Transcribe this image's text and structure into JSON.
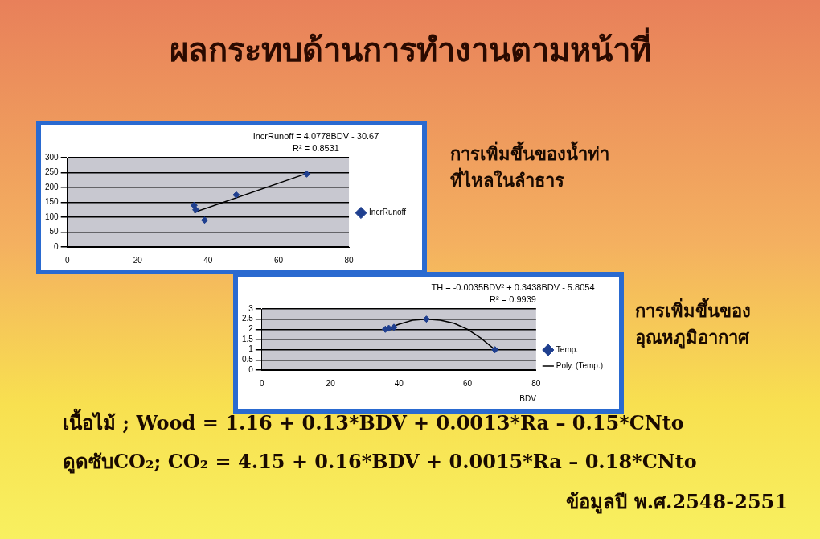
{
  "chart_data": [
    {
      "type": "other",
      "title": "ผลกระทบด้านการทำงานตามหน้าที่",
      "annotations": [
        "เนื้อไม้ ; Wood = 1.16 + 0.13*BDV + 0.0013*Ra – 0.15*CNto",
        "ดูดซับCO₂; CO₂ = 4.15 + 0.16*BDV + 0.0015*Ra – 0.18*CNto",
        "ข้อมูลปี พ.ศ.2548-2551",
        "การเพิ่มขึ้นของน้ำท่า\nที่ไหลในลำธาร",
        "การเพิ่มขึ้นของ\nอุณหภูมิอากาศ"
      ]
    },
    {
      "type": "scatter",
      "annotations": [
        "IncrRunoff = 4.0778BDV - 30.67",
        "R² = 0.8531"
      ],
      "xlim": [
        0,
        80
      ],
      "xticks": [
        0,
        20,
        40,
        60,
        80
      ],
      "ylim": [
        0,
        300
      ],
      "yticks": [
        0,
        50,
        100,
        150,
        200,
        250,
        300
      ],
      "grid": "y",
      "legend": "right",
      "series": [
        {
          "name": "IncrRunoff",
          "marker": "diamond",
          "color": "#1f3f8f",
          "x": [
            36,
            36.5,
            39,
            48,
            68
          ],
          "values": [
            140,
            125,
            90,
            175,
            245
          ]
        },
        {
          "type": "line",
          "marker": "none",
          "color": "#000000",
          "x": [
            36,
            68
          ],
          "values": [
            116,
            247
          ]
        }
      ]
    },
    {
      "type": "scatter",
      "annotations": [
        "TH = -0.0035BDV² + 0.3438BDV - 5.8054",
        "R² = 0.9939"
      ],
      "xlabel": "BDV",
      "xlim": [
        0,
        80
      ],
      "xticks": [
        0,
        20,
        40,
        60,
        80
      ],
      "ylim": [
        0,
        3
      ],
      "yticks": [
        0,
        0.5,
        1,
        1.5,
        2,
        2.5,
        3
      ],
      "grid": "y",
      "legend": "right",
      "series": [
        {
          "name": "Temp.",
          "marker": "diamond",
          "color": "#1f3f8f",
          "x": [
            36,
            37,
            38.5,
            48,
            68
          ],
          "values": [
            2.0,
            2.05,
            2.1,
            2.5,
            1.0
          ]
        },
        {
          "name": "Poly. (Temp.)",
          "type": "line",
          "marker": "none",
          "color": "#000000",
          "x": [
            36,
            40,
            44,
            48,
            52,
            56,
            60,
            64,
            68
          ],
          "values": [
            2.0,
            2.25,
            2.45,
            2.5,
            2.45,
            2.3,
            2.0,
            1.55,
            1.0
          ]
        }
      ]
    }
  ]
}
